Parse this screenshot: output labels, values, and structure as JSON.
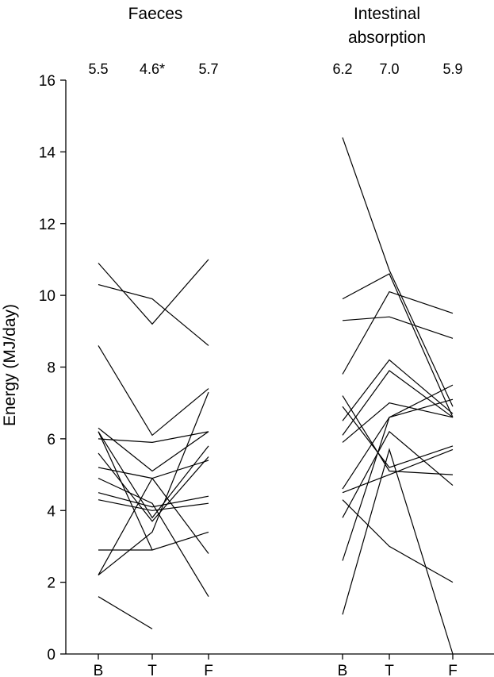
{
  "chart_data": {
    "type": "line",
    "ylabel": "Energy (MJ/day)",
    "ylim": [
      0,
      16
    ],
    "yticks": [
      0,
      2,
      4,
      6,
      8,
      10,
      12,
      14,
      16
    ],
    "grid": false,
    "legend": "none",
    "line_color": "#000000",
    "panels": [
      {
        "title_lines": [
          "Faeces"
        ],
        "categories": [
          "B",
          "T",
          "F"
        ],
        "means": [
          "5.5",
          "4.6*",
          "5.7"
        ],
        "series": [
          {
            "values": [
              10.9,
              9.2,
              11.0
            ]
          },
          {
            "values": [
              10.3,
              9.9,
              8.6
            ]
          },
          {
            "values": [
              8.6,
              6.1,
              7.4
            ]
          },
          {
            "values": [
              6.3,
              5.1,
              6.2
            ]
          },
          {
            "values": [
              6.0,
              5.9,
              6.2
            ]
          },
          {
            "values": [
              6.2,
              3.8,
              5.8
            ]
          },
          {
            "values": [
              5.6,
              3.7,
              5.5
            ]
          },
          {
            "values": [
              5.2,
              4.9,
              2.8
            ]
          },
          {
            "values": [
              4.9,
              4.2,
              1.6
            ]
          },
          {
            "values": [
              4.5,
              4.1,
              4.4
            ]
          },
          {
            "values": [
              4.3,
              4.0,
              4.2
            ]
          },
          {
            "values": [
              2.2,
              3.4,
              7.3
            ]
          },
          {
            "values": [
              2.2,
              4.9,
              5.4
            ]
          },
          {
            "values": [
              2.9,
              2.9,
              3.4
            ]
          },
          {
            "values": [
              6.2,
              2.9,
              null
            ]
          },
          {
            "values": [
              1.6,
              0.7,
              null
            ]
          }
        ]
      },
      {
        "title_lines": [
          "Intestinal",
          "absorption"
        ],
        "categories": [
          "B",
          "T",
          "F"
        ],
        "means": [
          "6.2",
          "7.0",
          "5.9"
        ],
        "series": [
          {
            "values": [
              14.4,
              10.7,
              6.9
            ]
          },
          {
            "values": [
              9.9,
              10.6,
              6.6
            ]
          },
          {
            "values": [
              9.3,
              9.4,
              8.8
            ]
          },
          {
            "values": [
              7.8,
              10.1,
              9.5
            ]
          },
          {
            "values": [
              7.2,
              5.1,
              5.0
            ]
          },
          {
            "values": [
              6.9,
              5.2,
              5.8
            ]
          },
          {
            "values": [
              6.5,
              8.2,
              6.7
            ]
          },
          {
            "values": [
              6.1,
              7.9,
              6.6
            ]
          },
          {
            "values": [
              5.9,
              7.0,
              6.6
            ]
          },
          {
            "values": [
              4.6,
              6.6,
              7.5
            ]
          },
          {
            "values": [
              4.5,
              5.0,
              5.7
            ]
          },
          {
            "values": [
              4.3,
              3.0,
              2.0
            ]
          },
          {
            "values": [
              3.8,
              6.2,
              4.7
            ]
          },
          {
            "values": [
              2.6,
              6.6,
              7.1
            ]
          },
          {
            "values": [
              1.1,
              5.7,
              0.0
            ]
          }
        ]
      }
    ]
  }
}
